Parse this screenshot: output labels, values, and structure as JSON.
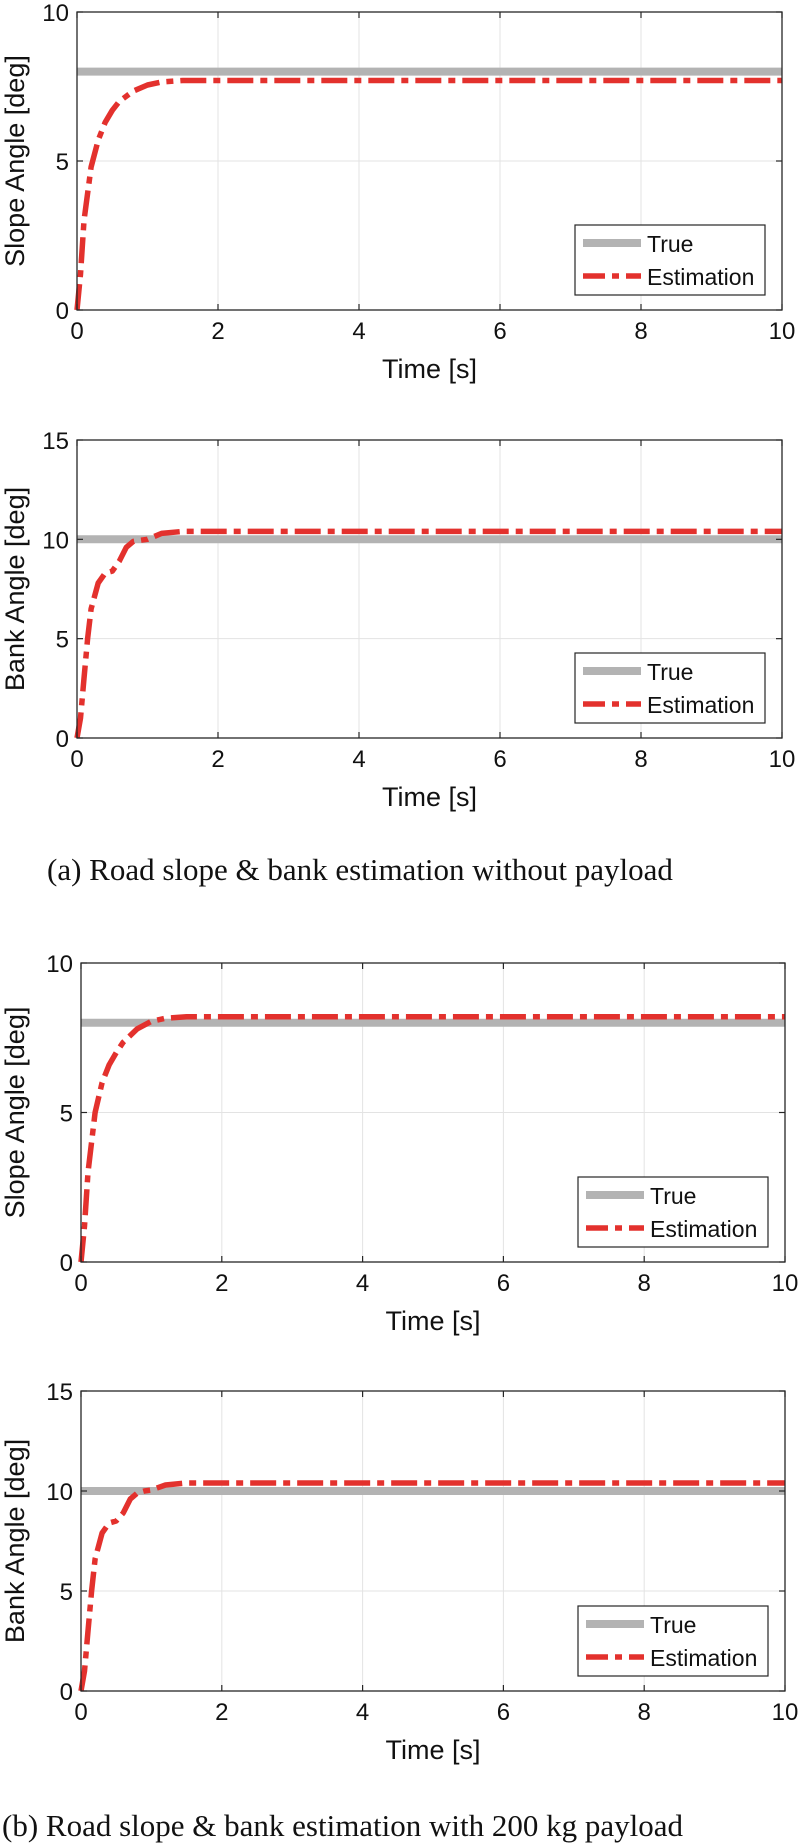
{
  "colors": {
    "true_line": "#b3b3b3",
    "estimation_line": "#e3312d",
    "grid": "#e3e3e3",
    "axis": "#262626"
  },
  "captions": {
    "a": "(a) Road slope & bank estimation without payload",
    "b": "(b) Road slope & bank estimation with 200 kg payload"
  },
  "chart_data": [
    {
      "type": "line",
      "xlabel": "Time [s]",
      "ylabel": "Slope Angle [deg]",
      "xlim": [
        0,
        10
      ],
      "ylim": [
        0,
        10
      ],
      "xticks": [
        0,
        2,
        4,
        6,
        8,
        10
      ],
      "yticks": [
        0,
        5,
        10
      ],
      "grid": true,
      "legend": "bottom-right",
      "series": [
        {
          "name": "True",
          "style": "solid",
          "x": [
            0,
            10
          ],
          "y": [
            8,
            8
          ]
        },
        {
          "name": "Estimation",
          "style": "dashdot",
          "x": [
            0,
            0.05,
            0.1,
            0.2,
            0.3,
            0.4,
            0.5,
            0.6,
            0.8,
            1.0,
            1.2,
            1.5,
            2.0,
            10
          ],
          "y": [
            0,
            1.2,
            3.0,
            4.8,
            5.7,
            6.3,
            6.7,
            7.0,
            7.35,
            7.55,
            7.65,
            7.7,
            7.7,
            7.7
          ]
        }
      ]
    },
    {
      "type": "line",
      "xlabel": "Time [s]",
      "ylabel": "Bank Angle [deg]",
      "xlim": [
        0,
        10
      ],
      "ylim": [
        0,
        15
      ],
      "xticks": [
        0,
        2,
        4,
        6,
        8,
        10
      ],
      "yticks": [
        0,
        5,
        10,
        15
      ],
      "grid": true,
      "legend": "bottom-right",
      "series": [
        {
          "name": "True",
          "style": "solid",
          "x": [
            0,
            10
          ],
          "y": [
            10,
            10
          ]
        },
        {
          "name": "Estimation",
          "style": "dashdot",
          "x": [
            0,
            0.05,
            0.1,
            0.15,
            0.2,
            0.3,
            0.4,
            0.5,
            0.6,
            0.7,
            0.8,
            0.9,
            1.0,
            1.2,
            1.5,
            2.0,
            10
          ],
          "y": [
            0,
            1.0,
            3.0,
            5.0,
            6.5,
            7.8,
            8.3,
            8.4,
            8.9,
            9.6,
            9.9,
            9.95,
            10.0,
            10.3,
            10.4,
            10.4,
            10.4
          ]
        }
      ]
    },
    {
      "type": "line",
      "xlabel": "Time [s]",
      "ylabel": "Slope Angle [deg]",
      "xlim": [
        0,
        10
      ],
      "ylim": [
        0,
        10
      ],
      "xticks": [
        0,
        2,
        4,
        6,
        8,
        10
      ],
      "yticks": [
        0,
        5,
        10
      ],
      "grid": true,
      "legend": "bottom-right",
      "series": [
        {
          "name": "True",
          "style": "solid",
          "x": [
            0,
            10
          ],
          "y": [
            8,
            8
          ]
        },
        {
          "name": "Estimation",
          "style": "dashdot",
          "x": [
            0,
            0.05,
            0.1,
            0.2,
            0.3,
            0.4,
            0.5,
            0.6,
            0.8,
            1.0,
            1.2,
            1.5,
            2.0,
            10
          ],
          "y": [
            0,
            1.2,
            3.0,
            5.0,
            6.0,
            6.6,
            7.0,
            7.35,
            7.8,
            8.05,
            8.15,
            8.2,
            8.2,
            8.2
          ]
        }
      ]
    },
    {
      "type": "line",
      "xlabel": "Time [s]",
      "ylabel": "Bank Angle [deg]",
      "xlim": [
        0,
        10
      ],
      "ylim": [
        0,
        15
      ],
      "xticks": [
        0,
        2,
        4,
        6,
        8,
        10
      ],
      "yticks": [
        0,
        5,
        10,
        15
      ],
      "grid": true,
      "legend": "bottom-right",
      "series": [
        {
          "name": "True",
          "style": "solid",
          "x": [
            0,
            10
          ],
          "y": [
            10,
            10
          ]
        },
        {
          "name": "Estimation",
          "style": "dashdot",
          "x": [
            0,
            0.05,
            0.1,
            0.15,
            0.2,
            0.3,
            0.4,
            0.5,
            0.6,
            0.7,
            0.8,
            0.9,
            1.0,
            1.2,
            1.5,
            2.0,
            10
          ],
          "y": [
            0,
            1.0,
            3.0,
            5.0,
            6.6,
            7.9,
            8.4,
            8.5,
            8.9,
            9.6,
            9.9,
            10.0,
            10.05,
            10.3,
            10.4,
            10.4,
            10.4
          ]
        }
      ]
    }
  ]
}
